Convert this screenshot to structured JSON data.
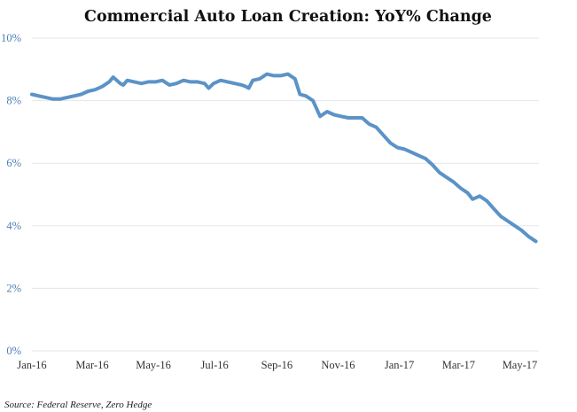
{
  "chart_data": {
    "type": "line",
    "title": "Commercial Auto Loan Creation: YoY% Change",
    "source": "Source: Federal Reserve, Zero Hedge",
    "xlabel": "",
    "ylabel": "",
    "x_ticks": [
      "Jan-16",
      "Mar-16",
      "May-16",
      "Jul-16",
      "Sep-16",
      "Nov-16",
      "Jan-17",
      "Mar-17",
      "May-17"
    ],
    "y_ticks": [
      "0%",
      "2%",
      "4%",
      "6%",
      "8%",
      "10%"
    ],
    "ylim": [
      0,
      10
    ],
    "grid": true,
    "legend": "none",
    "colors": {
      "line": "#5b93c7",
      "axis_labels": "#4a7fb5",
      "grid": "#e6e6e6"
    },
    "series": [
      {
        "points": [
          [
            "2016-01-01",
            8.2
          ],
          [
            "2016-01-08",
            8.15
          ],
          [
            "2016-01-15",
            8.1
          ],
          [
            "2016-01-22",
            8.05
          ],
          [
            "2016-01-29",
            8.05
          ],
          [
            "2016-02-05",
            8.1
          ],
          [
            "2016-02-12",
            8.15
          ],
          [
            "2016-02-19",
            8.2
          ],
          [
            "2016-02-26",
            8.3
          ],
          [
            "2016-03-04",
            8.35
          ],
          [
            "2016-03-11",
            8.45
          ],
          [
            "2016-03-18",
            8.6
          ],
          [
            "2016-03-22",
            8.75
          ],
          [
            "2016-03-29",
            8.55
          ],
          [
            "2016-04-01",
            8.5
          ],
          [
            "2016-04-05",
            8.65
          ],
          [
            "2016-04-12",
            8.6
          ],
          [
            "2016-04-19",
            8.55
          ],
          [
            "2016-04-26",
            8.6
          ],
          [
            "2016-05-03",
            8.6
          ],
          [
            "2016-05-10",
            8.65
          ],
          [
            "2016-05-17",
            8.5
          ],
          [
            "2016-05-24",
            8.55
          ],
          [
            "2016-05-31",
            8.65
          ],
          [
            "2016-06-07",
            8.6
          ],
          [
            "2016-06-14",
            8.6
          ],
          [
            "2016-06-21",
            8.55
          ],
          [
            "2016-06-25",
            8.4
          ],
          [
            "2016-06-30",
            8.55
          ],
          [
            "2016-07-07",
            8.65
          ],
          [
            "2016-07-14",
            8.6
          ],
          [
            "2016-07-21",
            8.55
          ],
          [
            "2016-07-28",
            8.5
          ],
          [
            "2016-08-01",
            8.45
          ],
          [
            "2016-08-04",
            8.4
          ],
          [
            "2016-08-08",
            8.65
          ],
          [
            "2016-08-15",
            8.7
          ],
          [
            "2016-08-22",
            8.85
          ],
          [
            "2016-08-29",
            8.8
          ],
          [
            "2016-09-05",
            8.8
          ],
          [
            "2016-09-12",
            8.85
          ],
          [
            "2016-09-19",
            8.7
          ],
          [
            "2016-09-24",
            8.2
          ],
          [
            "2016-09-30",
            8.15
          ],
          [
            "2016-10-07",
            8.0
          ],
          [
            "2016-10-14",
            7.5
          ],
          [
            "2016-10-21",
            7.65
          ],
          [
            "2016-10-28",
            7.55
          ],
          [
            "2016-11-04",
            7.5
          ],
          [
            "2016-11-11",
            7.45
          ],
          [
            "2016-11-18",
            7.45
          ],
          [
            "2016-11-25",
            7.45
          ],
          [
            "2016-12-02",
            7.25
          ],
          [
            "2016-12-09",
            7.15
          ],
          [
            "2016-12-16",
            6.9
          ],
          [
            "2016-12-23",
            6.65
          ],
          [
            "2016-12-30",
            6.5
          ],
          [
            "2017-01-06",
            6.45
          ],
          [
            "2017-01-13",
            6.35
          ],
          [
            "2017-01-20",
            6.25
          ],
          [
            "2017-01-27",
            6.15
          ],
          [
            "2017-02-03",
            5.95
          ],
          [
            "2017-02-10",
            5.7
          ],
          [
            "2017-02-17",
            5.55
          ],
          [
            "2017-02-24",
            5.4
          ],
          [
            "2017-03-03",
            5.2
          ],
          [
            "2017-03-10",
            5.05
          ],
          [
            "2017-03-15",
            4.85
          ],
          [
            "2017-03-22",
            4.95
          ],
          [
            "2017-03-29",
            4.8
          ],
          [
            "2017-04-05",
            4.55
          ],
          [
            "2017-04-12",
            4.3
          ],
          [
            "2017-04-19",
            4.15
          ],
          [
            "2017-04-26",
            4.0
          ],
          [
            "2017-05-03",
            3.85
          ],
          [
            "2017-05-10",
            3.65
          ],
          [
            "2017-05-17",
            3.5
          ]
        ]
      }
    ]
  }
}
